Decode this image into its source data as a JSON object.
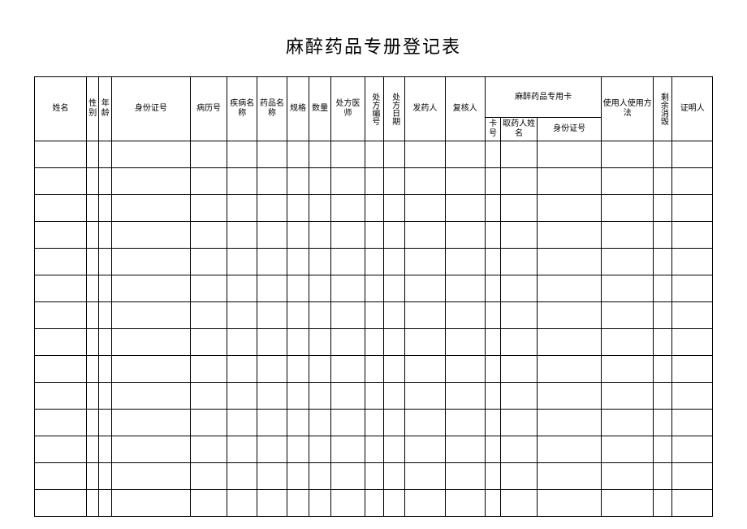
{
  "title": "麻醉药品专册登记表",
  "table": {
    "columns": {
      "name": "姓名",
      "sex": "性别",
      "age": "年龄",
      "id_number": "身份证号",
      "medical_record": "病历号",
      "disease_name": "疾病名称",
      "drug_name": "药品名称",
      "spec": "规格",
      "qty": "数量",
      "rx_doctor": "处方医师",
      "rx_number": "处方编号",
      "rx_date": "处方日期",
      "dispenser": "发药人",
      "reviewer": "复核人",
      "special_card_group": "麻醉药品专用卡",
      "card_number": "卡号",
      "pickup_name": "取药人姓名",
      "pickup_id": "身份证号",
      "usage_method": "使用人使用方法",
      "remainder_destroy": "剩余消毁",
      "witness": "证明人"
    },
    "col_widths_pct": [
      6.6,
      1.6,
      1.6,
      10.0,
      4.7,
      3.8,
      3.8,
      2.8,
      2.8,
      4.3,
      2.4,
      2.7,
      5.1,
      5.1,
      2.0,
      4.6,
      8.2,
      6.6,
      2.4,
      5.1
    ],
    "body_row_count": 14,
    "title_fontsize": 22,
    "cell_fontsize": 10,
    "border_color": "#000000",
    "background_color": "#ffffff"
  }
}
